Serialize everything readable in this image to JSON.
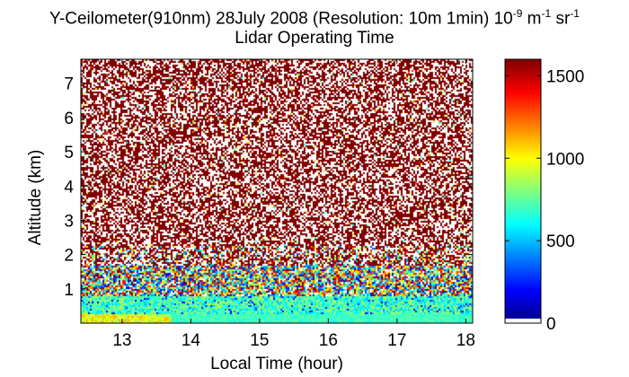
{
  "chart_data": {
    "type": "heatmap",
    "title_parts": {
      "main": "Y-Ceilometer(910nm) 28July 2008 (Resolution: 10m 1min) 10",
      "exp1": "-9",
      "mid": " m",
      "exp2": "-1",
      "mid2": " sr",
      "exp3": "-1"
    },
    "subtitle": "Lidar Operating Time",
    "xlabel": "Local Time (hour)",
    "ylabel": "Altitude (km)",
    "xlim": [
      12.4,
      18.1
    ],
    "ylim": [
      0,
      7.7
    ],
    "x_ticks": [
      13,
      14,
      15,
      16,
      17,
      18
    ],
    "y_ticks": [
      1,
      2,
      3,
      4,
      5,
      6,
      7
    ],
    "colorbar": {
      "min": 0,
      "max": 1600,
      "ticks": [
        0,
        500,
        1000,
        1500
      ],
      "colormap": "jet"
    },
    "profile": [
      {
        "altitude_range": [
          0,
          0.3
        ],
        "level": 1000
      },
      {
        "altitude_range": [
          0.3,
          0.8
        ],
        "level": 700
      },
      {
        "altitude_range": [
          0.8,
          1.7
        ],
        "level": 900
      },
      {
        "altitude_range": [
          1.7,
          7.7
        ],
        "level": 1600
      }
    ],
    "gap_after_hour": 13.7
  }
}
